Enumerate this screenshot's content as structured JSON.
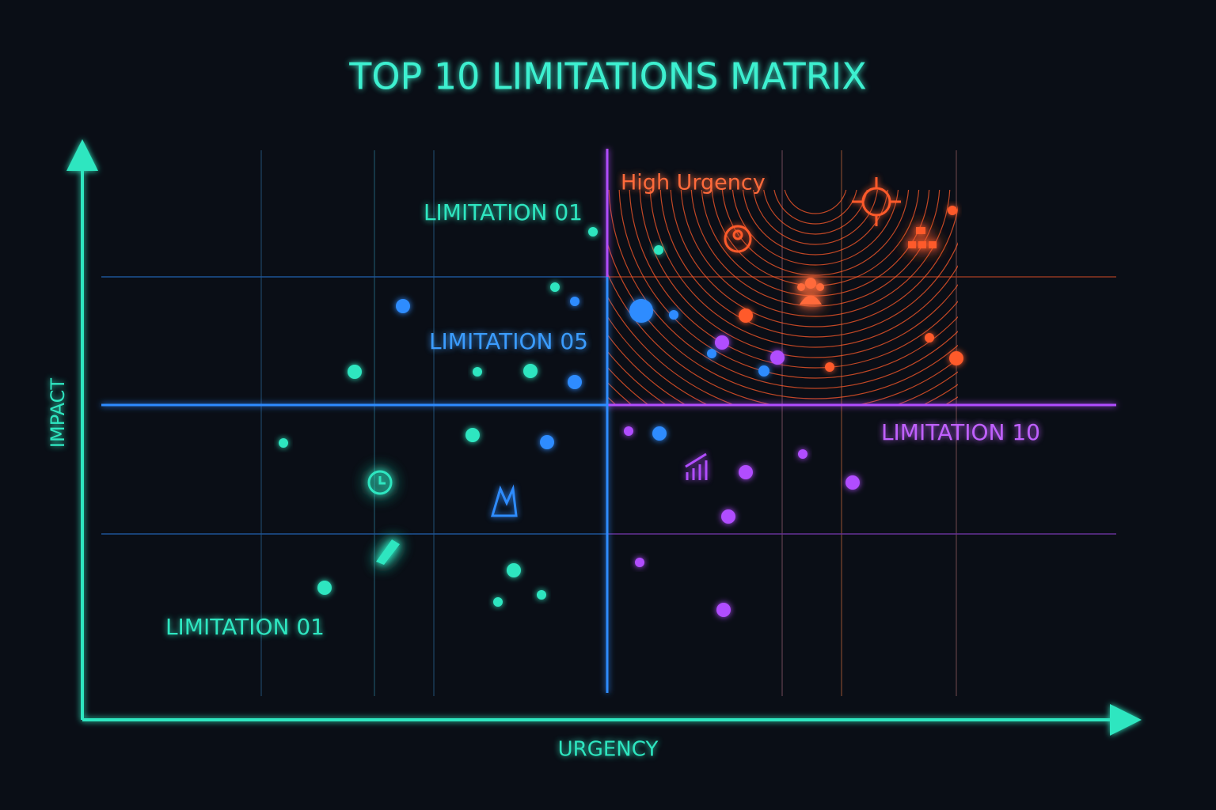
{
  "title": "TOP 10 LIMITATIONS MATRIX",
  "axes": {
    "y_label": "IMPACT",
    "x_label": "URGENCY"
  },
  "quadrant_labels": {
    "high_urgency": "High Urgency",
    "top_left": "LIMITATION 01",
    "middle_left": "LIMITATION 05",
    "right": "LIMITATION 10",
    "bottom_left": "LIMITATION 01"
  }
}
